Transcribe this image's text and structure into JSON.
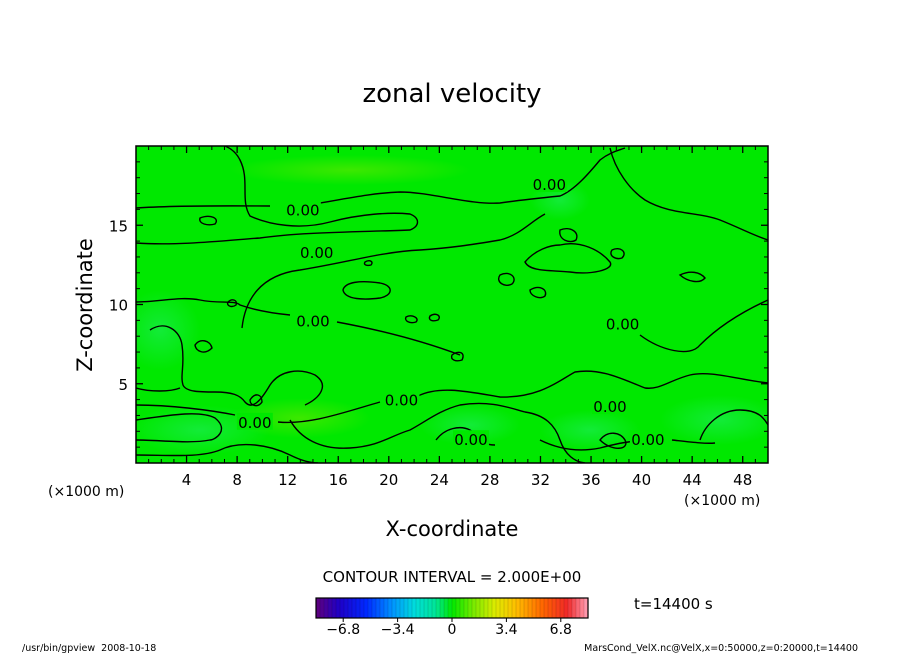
{
  "chart_data": {
    "type": "heatmap",
    "title": "zonal velocity",
    "xlabel": "X-coordinate",
    "ylabel": "Z-coordinate",
    "x_unit": "(×1000 m)",
    "x_unit_right": "(×1000 m)",
    "xlim": [
      0,
      50
    ],
    "ylim": [
      0,
      20
    ],
    "x_ticks": [
      4,
      8,
      12,
      16,
      20,
      24,
      28,
      32,
      36,
      40,
      44,
      48
    ],
    "y_ticks": [
      5,
      10,
      15
    ],
    "contour_interval_text": "CONTOUR INTERVAL = 2.000E+00",
    "contour_labels": [
      {
        "text": "0.00",
        "x": 13.2,
        "z": 16.0
      },
      {
        "text": "0.00",
        "x": 14.3,
        "z": 13.3
      },
      {
        "text": "0.00",
        "x": 14.0,
        "z": 9.0
      },
      {
        "text": "0.00",
        "x": 32.7,
        "z": 17.6
      },
      {
        "text": "0.00",
        "x": 38.5,
        "z": 8.8
      },
      {
        "text": "0.00",
        "x": 21.0,
        "z": 4.0
      },
      {
        "text": "0.00",
        "x": 9.4,
        "z": 2.6
      },
      {
        "text": "0.00",
        "x": 26.5,
        "z": 1.5
      },
      {
        "text": "0.00",
        "x": 37.5,
        "z": 3.6
      },
      {
        "text": "0.00",
        "x": 40.5,
        "z": 1.5
      }
    ],
    "colorbar": {
      "ticks": [
        "−6.8",
        "−3.4",
        "0",
        "3.4",
        "6.8"
      ],
      "min": -8.5,
      "max": 8.5
    },
    "field_background": "#00e800",
    "time_label": "t=14400 s"
  },
  "footer": {
    "left": "/usr/bin/gpview  2008-10-18",
    "right": "MarsCond_VelX.nc@VelX,x=0:50000,z=0:20000,t=14400"
  }
}
